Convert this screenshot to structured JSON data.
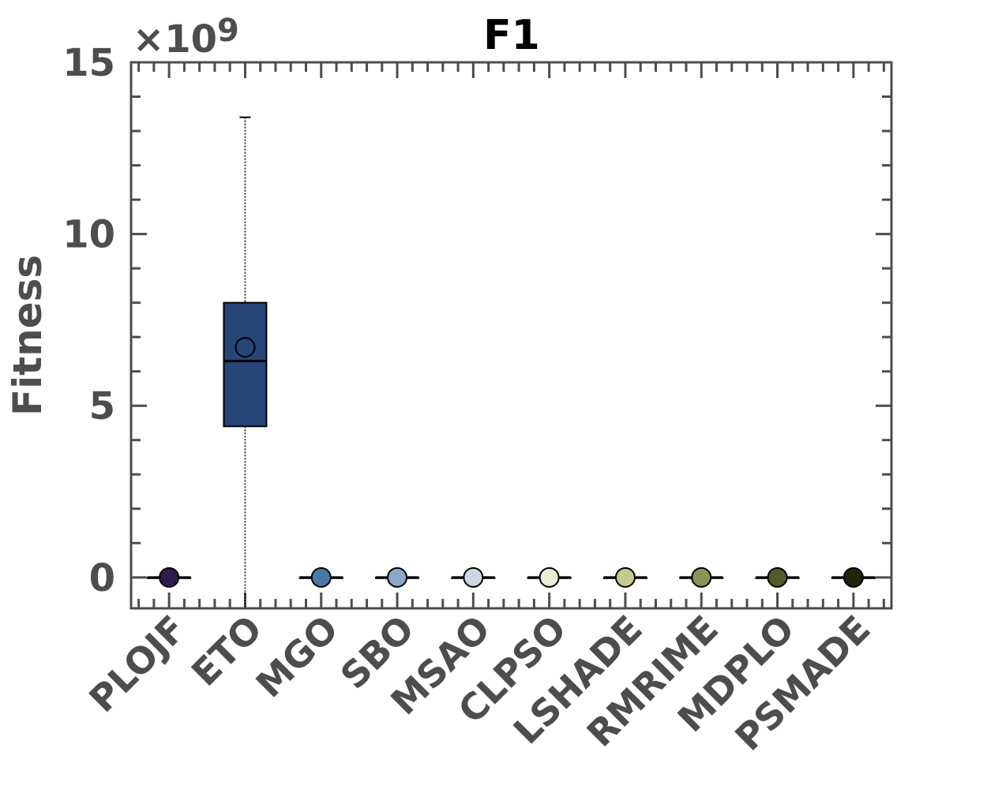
{
  "chart_data": {
    "type": "box",
    "title": "F1",
    "ylabel": "Fitness",
    "exponent_label": "×10",
    "exponent_power": "9",
    "ylim": [
      -0.9,
      15
    ],
    "y_ticks": [
      0,
      5,
      10,
      15
    ],
    "y_tick_labels": [
      "0",
      "5",
      "10",
      "15"
    ],
    "categories": [
      "PLOJF",
      "ETO",
      "MGO",
      "SBO",
      "MSAO",
      "CLPSO",
      "LSHADE",
      "RMRIME",
      "MDPLO",
      "PSMADE"
    ],
    "boxes": [
      {
        "name": "PLOJF",
        "color": "#2e1a4e",
        "min": 0,
        "q1": 0,
        "median": 0,
        "q3": 0,
        "max": 0,
        "mean": 0
      },
      {
        "name": "ETO",
        "color": "#274577",
        "min": -0.9,
        "q1": 4.4,
        "median": 6.3,
        "q3": 8.0,
        "max": 13.4,
        "mean": 6.7
      },
      {
        "name": "MGO",
        "color": "#4a78a8",
        "min": 0,
        "q1": 0,
        "median": 0,
        "q3": 0,
        "max": 0,
        "mean": 0
      },
      {
        "name": "SBO",
        "color": "#8aa8c8",
        "min": 0,
        "q1": 0,
        "median": 0,
        "q3": 0,
        "max": 0,
        "mean": 0
      },
      {
        "name": "MSAO",
        "color": "#c9d7e6",
        "min": 0,
        "q1": 0,
        "median": 0,
        "q3": 0,
        "max": 0,
        "mean": 0
      },
      {
        "name": "CLPSO",
        "color": "#ebebd6",
        "min": 0,
        "q1": 0,
        "median": 0,
        "q3": 0,
        "max": 0,
        "mean": 0
      },
      {
        "name": "LSHADE",
        "color": "#c6c891",
        "min": 0,
        "q1": 0,
        "median": 0,
        "q3": 0,
        "max": 0,
        "mean": 0
      },
      {
        "name": "RMRIME",
        "color": "#8c9158",
        "min": 0,
        "q1": 0,
        "median": 0,
        "q3": 0,
        "max": 0,
        "mean": 0
      },
      {
        "name": "MDPLO",
        "color": "#545b2b",
        "min": 0,
        "q1": 0,
        "median": 0,
        "q3": 0,
        "max": 0,
        "mean": 0
      },
      {
        "name": "PSMADE",
        "color": "#23230a",
        "min": 0,
        "q1": 0,
        "median": 0,
        "q3": 0,
        "max": 0,
        "mean": 0
      }
    ],
    "grid": false,
    "legend": "none"
  }
}
